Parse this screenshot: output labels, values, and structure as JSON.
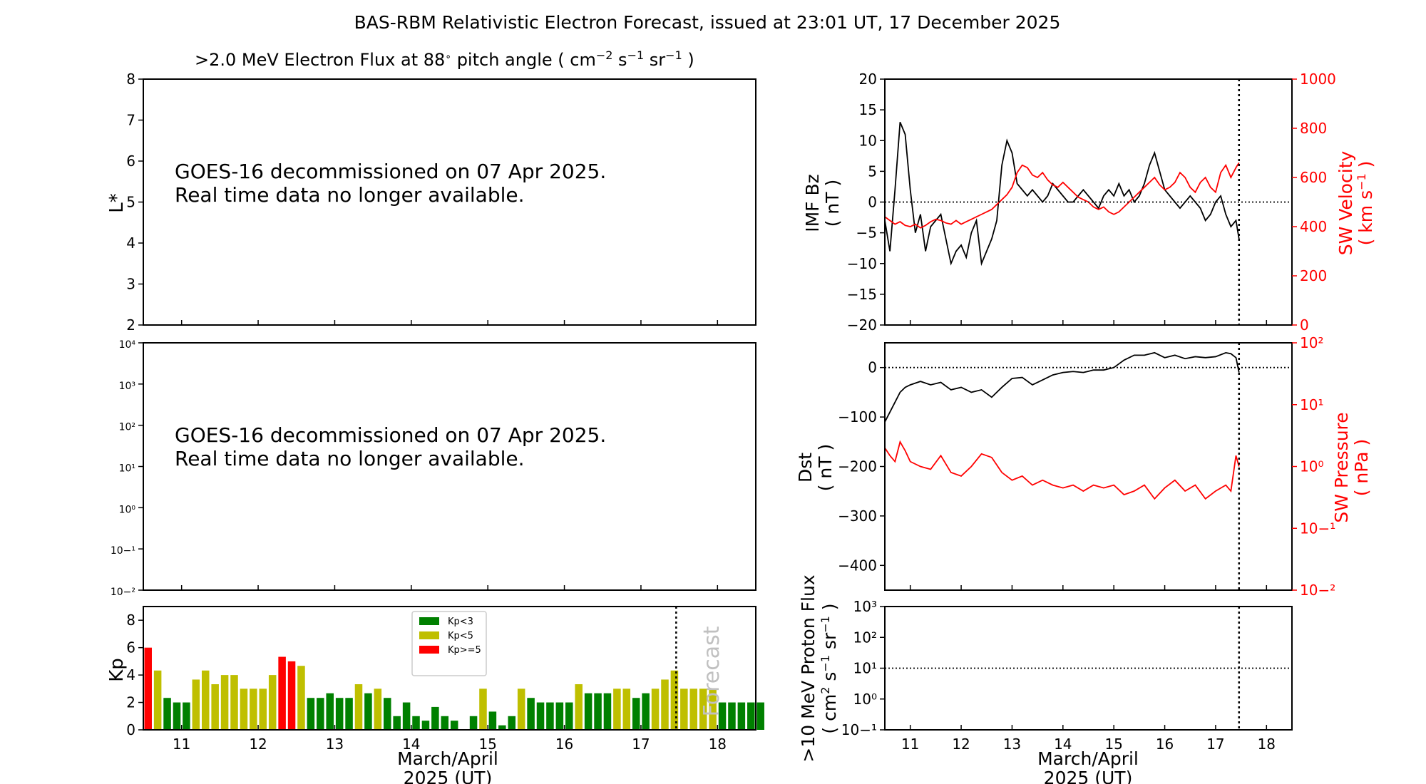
{
  "figure": {
    "title": "BAS-RBM Relativistic Electron Forecast, issued at 23:01 UT, 17 December 2025"
  },
  "colors": {
    "kp_low": "#008000",
    "kp_mid": "#bfbf00",
    "kp_high": "#ff0000",
    "bz_line": "#000000",
    "sw_line": "#ff0000"
  },
  "left": {
    "flux_panel_title": ">2.0 MeV Electron Flux at 88",
    "flux_panel_title_suffix": " pitch angle ( cm",
    "message_line1": "GOES-16 decommissioned on 07 Apr 2025.",
    "message_line2": "Real time data no longer available.",
    "lstar_label": "L*",
    "kp_label": "Kp",
    "forecast_label": "Forecast",
    "xlabel_line1": "March/April",
    "xlabel_line2": "2025 (UT)",
    "legend": [
      "Kp<3",
      "Kp<5",
      "Kp>=5"
    ]
  },
  "right": {
    "bz_label_1": "IMF Bz",
    "bz_label_2": "( nT )",
    "vel_label_1": "SW Velocity",
    "vel_label_2": "( km s",
    "dst_label_1": "Dst",
    "dst_label_2": "( nT )",
    "pres_label_1": "SW Pressure",
    "pres_label_2": "( nPa )",
    "proton_label_1": ">10 MeV Proton Flux",
    "proton_label_2": "( cm",
    "xlabel_line1": "March/April",
    "xlabel_line2": "2025 (UT)"
  },
  "chart_data": [
    {
      "type": "heatmap",
      "panel": "L* electron flux",
      "ylabel": "L*",
      "ylim": [
        2,
        8
      ],
      "yticks": [
        2,
        3,
        4,
        5,
        6,
        7,
        8
      ],
      "annotation": "GOES-16 decommissioned on 07 Apr 2025. Real time data no longer available."
    },
    {
      "type": "line",
      "panel": "flux (log)",
      "ylim_exp": [
        -2,
        4
      ],
      "yticks_exp": [
        -2,
        -1,
        0,
        1,
        2,
        3,
        4
      ],
      "annotation": "GOES-16 decommissioned on 07 Apr 2025. Real time data no longer available."
    },
    {
      "type": "bar",
      "panel": "Kp",
      "ylabel": "Kp",
      "ylim": [
        0,
        9
      ],
      "yticks": [
        0,
        2,
        4,
        6,
        8
      ],
      "xlim": [
        10.5,
        18.5
      ],
      "xticks": [
        11,
        12,
        13,
        14,
        15,
        16,
        17,
        18
      ],
      "forecast_start": 17.46,
      "bar_width": 0.1,
      "values": [
        6.0,
        4.33,
        2.33,
        2.0,
        2.0,
        3.67,
        4.33,
        3.33,
        4.0,
        4.0,
        3.0,
        3.0,
        3.0,
        4.0,
        5.33,
        5.0,
        4.67,
        2.33,
        2.33,
        2.67,
        2.33,
        2.33,
        3.33,
        2.67,
        3.0,
        2.33,
        1.0,
        2.0,
        1.0,
        0.67,
        1.67,
        1.0,
        0.67,
        0.0,
        1.0,
        3.0,
        1.33,
        0.33,
        1.0,
        3.0,
        2.33,
        2.0,
        2.0,
        2.0,
        2.0,
        3.33,
        2.67,
        2.67,
        2.67,
        3.0,
        3.0,
        2.33,
        2.67,
        3.0,
        3.67,
        4.33,
        3.0,
        3.0,
        3.0,
        3.0,
        2.0,
        2.0,
        2.0,
        2.0,
        2.0
      ]
    },
    {
      "type": "line",
      "panel": "IMF Bz / SW Velocity",
      "xlim": [
        10.5,
        18.5
      ],
      "ylim_left": [
        -20,
        20
      ],
      "yticks_left": [
        -20,
        -15,
        -10,
        -5,
        0,
        5,
        10,
        15,
        20
      ],
      "ylim_right": [
        0,
        1000
      ],
      "yticks_right": [
        0,
        200,
        400,
        600,
        800,
        1000
      ],
      "series": [
        {
          "name": "IMF Bz",
          "x": [
            10.5,
            10.6,
            10.7,
            10.8,
            10.9,
            11.0,
            11.1,
            11.2,
            11.3,
            11.4,
            11.5,
            11.6,
            11.7,
            11.8,
            11.9,
            12.0,
            12.1,
            12.2,
            12.3,
            12.4,
            12.5,
            12.6,
            12.7,
            12.8,
            12.9,
            13.0,
            13.1,
            13.2,
            13.3,
            13.4,
            13.5,
            13.6,
            13.7,
            13.8,
            13.9,
            14.0,
            14.1,
            14.2,
            14.3,
            14.4,
            14.5,
            14.6,
            14.7,
            14.8,
            14.9,
            15.0,
            15.1,
            15.2,
            15.3,
            15.4,
            15.5,
            15.6,
            15.7,
            15.8,
            15.9,
            16.0,
            16.1,
            16.2,
            16.3,
            16.4,
            16.5,
            16.6,
            16.7,
            16.8,
            16.9,
            17.0,
            17.1,
            17.2,
            17.3,
            17.4,
            17.46
          ],
          "values": [
            -3,
            -8,
            2,
            13,
            11,
            2,
            -5,
            -2,
            -8,
            -4,
            -3,
            -2,
            -6,
            -10,
            -8,
            -7,
            -9,
            -5,
            -3,
            -10,
            -8,
            -6,
            -3,
            6,
            10,
            8,
            3,
            2,
            1,
            2,
            1,
            0,
            1,
            3,
            2,
            1,
            0,
            0,
            1,
            2,
            1,
            0,
            -1,
            1,
            2,
            1,
            3,
            1,
            2,
            0,
            1,
            3,
            6,
            8,
            5,
            2,
            1,
            0,
            -1,
            0,
            1,
            0,
            -1,
            -3,
            -2,
            0,
            1,
            -2,
            -4,
            -3,
            -6
          ]
        },
        {
          "name": "SW Velocity",
          "x": [
            10.5,
            10.6,
            10.7,
            10.8,
            10.9,
            11.0,
            11.1,
            11.2,
            11.3,
            11.4,
            11.5,
            11.6,
            11.7,
            11.8,
            11.9,
            12.0,
            12.1,
            12.2,
            12.3,
            12.4,
            12.5,
            12.6,
            12.7,
            12.8,
            12.9,
            13.0,
            13.1,
            13.2,
            13.3,
            13.4,
            13.5,
            13.6,
            13.7,
            13.8,
            13.9,
            14.0,
            14.1,
            14.2,
            14.3,
            14.4,
            14.5,
            14.6,
            14.7,
            14.8,
            14.9,
            15.0,
            15.1,
            15.2,
            15.3,
            15.4,
            15.5,
            15.6,
            15.7,
            15.8,
            15.9,
            16.0,
            16.1,
            16.2,
            16.3,
            16.4,
            16.5,
            16.6,
            16.7,
            16.8,
            16.9,
            17.0,
            17.1,
            17.2,
            17.3,
            17.4,
            17.46
          ],
          "values": [
            440,
            425,
            410,
            420,
            405,
            400,
            410,
            395,
            405,
            420,
            430,
            425,
            415,
            410,
            425,
            410,
            420,
            430,
            440,
            450,
            460,
            470,
            490,
            510,
            530,
            560,
            620,
            650,
            640,
            610,
            600,
            620,
            590,
            570,
            560,
            580,
            560,
            540,
            520,
            510,
            500,
            480,
            470,
            480,
            460,
            450,
            460,
            480,
            500,
            520,
            540,
            560,
            580,
            600,
            570,
            550,
            560,
            580,
            620,
            600,
            560,
            540,
            580,
            600,
            560,
            540,
            620,
            650,
            600,
            640,
            660
          ]
        }
      ]
    },
    {
      "type": "line",
      "panel": "Dst / SW Pressure",
      "xlim": [
        10.5,
        18.5
      ],
      "ylim_left": [
        -450,
        50
      ],
      "yticks_left": [
        -400,
        -300,
        -200,
        -100,
        0
      ],
      "ylim_right_exp": [
        -2,
        2
      ],
      "yticks_right_exp": [
        -2,
        -1,
        0,
        1,
        2
      ],
      "series": [
        {
          "name": "Dst",
          "x": [
            10.5,
            10.6,
            10.7,
            10.8,
            10.9,
            11.0,
            11.2,
            11.4,
            11.6,
            11.8,
            12.0,
            12.2,
            12.4,
            12.6,
            12.8,
            13.0,
            13.2,
            13.4,
            13.6,
            13.8,
            14.0,
            14.2,
            14.4,
            14.6,
            14.8,
            15.0,
            15.2,
            15.4,
            15.6,
            15.8,
            16.0,
            16.2,
            16.4,
            16.6,
            16.8,
            17.0,
            17.2,
            17.3,
            17.4,
            17.46
          ],
          "values": [
            -110,
            -90,
            -70,
            -50,
            -40,
            -35,
            -28,
            -35,
            -30,
            -45,
            -40,
            -50,
            -45,
            -60,
            -40,
            -22,
            -20,
            -35,
            -25,
            -15,
            -10,
            -8,
            -10,
            -5,
            -5,
            0,
            15,
            25,
            25,
            30,
            20,
            25,
            18,
            22,
            20,
            22,
            30,
            28,
            20,
            -10
          ]
        },
        {
          "name": "SW Pressure",
          "x": [
            10.5,
            10.6,
            10.7,
            10.8,
            10.9,
            11.0,
            11.2,
            11.4,
            11.6,
            11.8,
            12.0,
            12.2,
            12.4,
            12.6,
            12.8,
            13.0,
            13.2,
            13.4,
            13.6,
            13.8,
            14.0,
            14.2,
            14.4,
            14.6,
            14.8,
            15.0,
            15.2,
            15.4,
            15.6,
            15.8,
            16.0,
            16.2,
            16.4,
            16.6,
            16.8,
            17.0,
            17.2,
            17.3,
            17.4,
            17.46
          ],
          "values": [
            2.0,
            1.5,
            1.2,
            2.5,
            1.8,
            1.2,
            1.0,
            0.9,
            1.5,
            0.8,
            0.7,
            1.0,
            1.6,
            1.4,
            0.8,
            0.6,
            0.7,
            0.5,
            0.6,
            0.5,
            0.45,
            0.5,
            0.4,
            0.5,
            0.45,
            0.5,
            0.35,
            0.4,
            0.5,
            0.3,
            0.45,
            0.6,
            0.4,
            0.5,
            0.3,
            0.4,
            0.5,
            0.4,
            1.5,
            1.0
          ]
        }
      ]
    },
    {
      "type": "line",
      "panel": ">10 MeV Proton Flux",
      "xlim": [
        10.5,
        18.5
      ],
      "xticks": [
        11,
        12,
        13,
        14,
        15,
        16,
        17,
        18
      ],
      "ylim_exp": [
        -1,
        3
      ],
      "yticks_exp": [
        -1,
        0,
        1,
        2,
        3
      ],
      "threshold": 10
    }
  ]
}
